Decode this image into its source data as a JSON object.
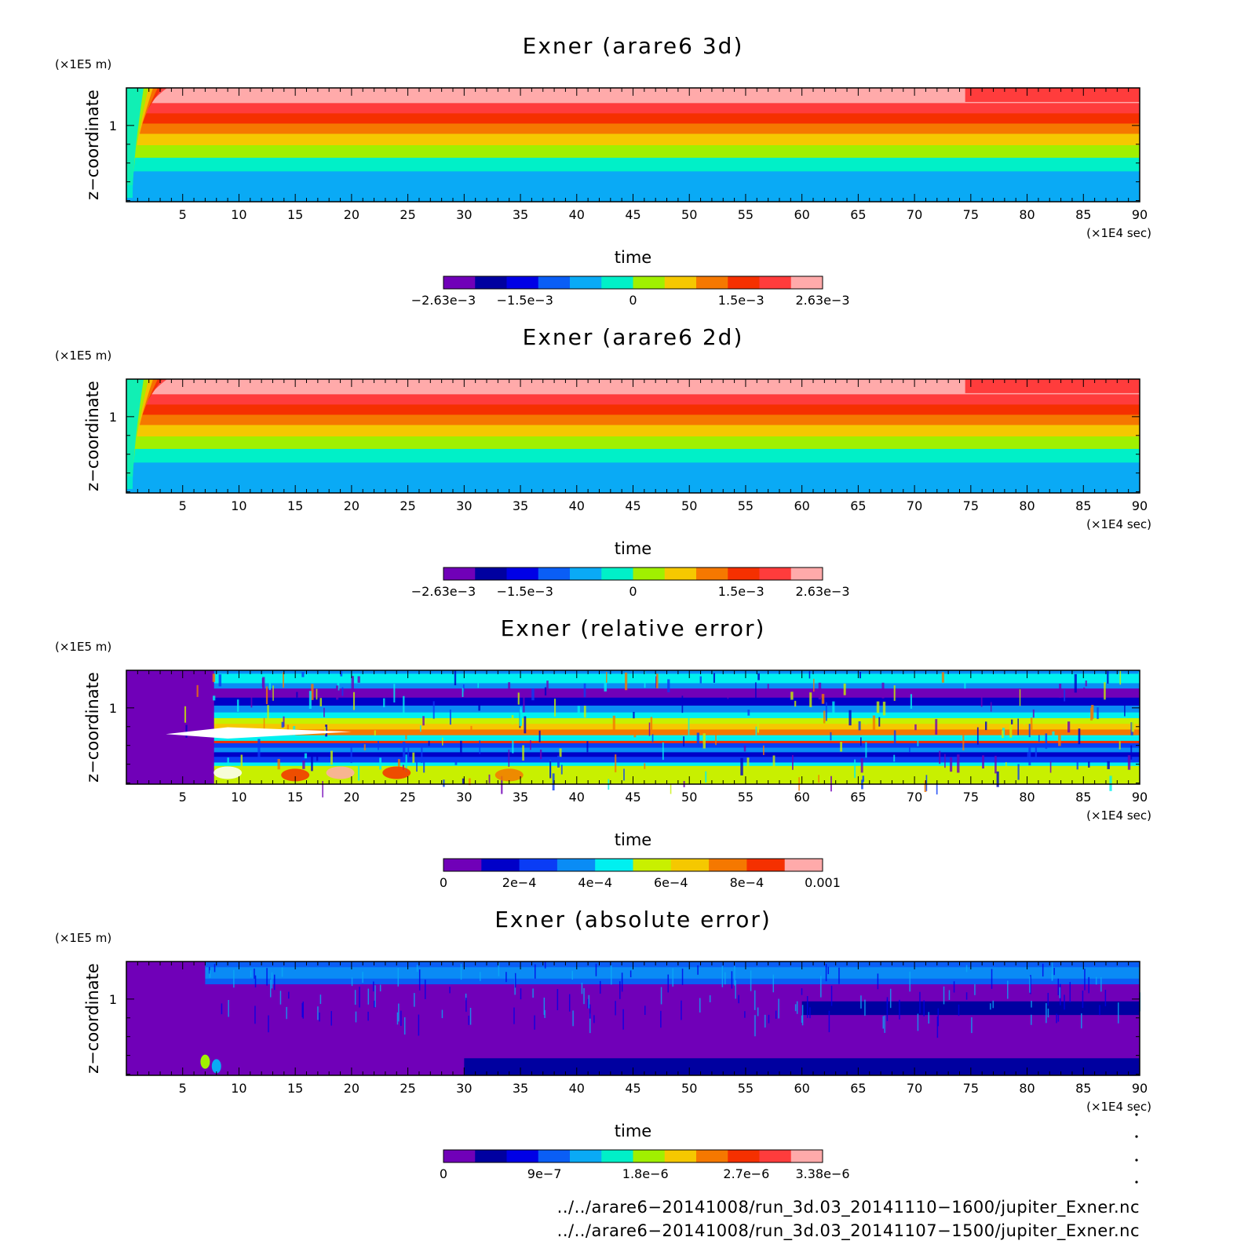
{
  "chart_data": [
    {
      "type": "heatmap",
      "title": "Exner (arare6 3d)",
      "xlabel": "time",
      "x_unit": "(×1E4 sec)",
      "ylabel": "z−coordinate",
      "y_unit": "(×1E5 m)",
      "xlim": [
        0,
        90
      ],
      "xticks": [
        "5",
        "10",
        "15",
        "20",
        "25",
        "30",
        "35",
        "40",
        "45",
        "50",
        "55",
        "60",
        "65",
        "70",
        "75",
        "80",
        "85",
        "90"
      ],
      "yticks": [
        "1"
      ],
      "colorbar": {
        "colors": [
          "#7000b8",
          "#0000a0",
          "#0000e6",
          "#0a5ef5",
          "#0aaaf5",
          "#00f0c8",
          "#a0f000",
          "#f5c800",
          "#f57800",
          "#f53000",
          "#ff3c3c",
          "#ffaaaa"
        ],
        "tick_labels": [
          "−2.63e−3",
          "−1.5e−3",
          "0",
          "1.5e−3",
          "2.63e−3"
        ],
        "range": [
          -0.00263,
          0.00263
        ]
      },
      "bands_bottom_to_top": [
        "#0aaaf5",
        "#00f0c8",
        "#a0f000",
        "#f5c800",
        "#f57800",
        "#f53000",
        "#ff3c3c",
        "#ffaaaa"
      ],
      "notes": "Horizontal layering constant in time after ~3e4 s; top layer shifts from pink to red near t=74."
    },
    {
      "type": "heatmap",
      "title": "Exner (arare6 2d)",
      "xlabel": "time",
      "x_unit": "(×1E4 sec)",
      "ylabel": "z−coordinate",
      "y_unit": "(×1E5 m)",
      "xlim": [
        0,
        90
      ],
      "xticks": [
        "5",
        "10",
        "15",
        "20",
        "25",
        "30",
        "35",
        "40",
        "45",
        "50",
        "55",
        "60",
        "65",
        "70",
        "75",
        "80",
        "85",
        "90"
      ],
      "yticks": [
        "1"
      ],
      "colorbar": {
        "colors": [
          "#7000b8",
          "#0000a0",
          "#0000e6",
          "#0a5ef5",
          "#0aaaf5",
          "#00f0c8",
          "#a0f000",
          "#f5c800",
          "#f57800",
          "#f53000",
          "#ff3c3c",
          "#ffaaaa"
        ],
        "tick_labels": [
          "−2.63e−3",
          "−1.5e−3",
          "0",
          "1.5e−3",
          "2.63e−3"
        ],
        "range": [
          -0.00263,
          0.00263
        ]
      },
      "bands_bottom_to_top": [
        "#0aaaf5",
        "#00f0c8",
        "#a0f000",
        "#f5c800",
        "#f57800",
        "#f53000",
        "#ff3c3c",
        "#ffaaaa"
      ],
      "notes": "Nearly identical to 3d case."
    },
    {
      "type": "heatmap",
      "title": "Exner (relative error)",
      "xlabel": "time",
      "x_unit": "(×1E4 sec)",
      "ylabel": "z−coordinate",
      "y_unit": "(×1E5 m)",
      "xlim": [
        0,
        90
      ],
      "xticks": [
        "5",
        "10",
        "15",
        "20",
        "25",
        "30",
        "35",
        "40",
        "45",
        "50",
        "55",
        "60",
        "65",
        "70",
        "75",
        "80",
        "85",
        "90"
      ],
      "yticks": [
        "1"
      ],
      "colorbar": {
        "colors": [
          "#7000b8",
          "#0000c8",
          "#0a3cf5",
          "#0a8cf5",
          "#00f0f0",
          "#c8f000",
          "#f5c800",
          "#f57800",
          "#f53000",
          "#ffaaaa"
        ],
        "tick_labels": [
          "0",
          "2e−4",
          "4e−4",
          "6e−4",
          "8e−4",
          "0.001"
        ],
        "range": [
          0,
          0.001
        ]
      },
      "notes": "Error near zero before t~5; noisy, striated bands afterwards with a peak layer around z~0.7."
    },
    {
      "type": "heatmap",
      "title": "Exner (absolute error)",
      "xlabel": "time",
      "x_unit": "(×1E4 sec)",
      "ylabel": "z−coordinate",
      "y_unit": "(×1E5 m)",
      "xlim": [
        0,
        90
      ],
      "xticks": [
        "5",
        "10",
        "15",
        "20",
        "25",
        "30",
        "35",
        "40",
        "45",
        "50",
        "55",
        "60",
        "65",
        "70",
        "75",
        "80",
        "85",
        "90"
      ],
      "yticks": [
        "1"
      ],
      "colorbar": {
        "colors": [
          "#7000b8",
          "#0000a0",
          "#0000e6",
          "#0a5ef5",
          "#0aaaf5",
          "#00f0c8",
          "#a0f000",
          "#f5c800",
          "#f57800",
          "#f53000",
          "#ff3c3c",
          "#ffaaaa"
        ],
        "tick_labels": [
          "0",
          "9e−7",
          "1.8e−6",
          "2.7e−6",
          "3.38e−6"
        ],
        "range": [
          0,
          3.38e-06
        ]
      },
      "notes": "Mostly purple/dark blue; lighter blue layer near top of domain."
    }
  ],
  "footer": {
    "paths": [
      "../../arare6−20141008/run_3d.03_20141110−1600/jupiter_Exner.nc",
      "../../arare6−20141008/run_3d.03_20141107−1500/jupiter_Exner.nc"
    ]
  }
}
